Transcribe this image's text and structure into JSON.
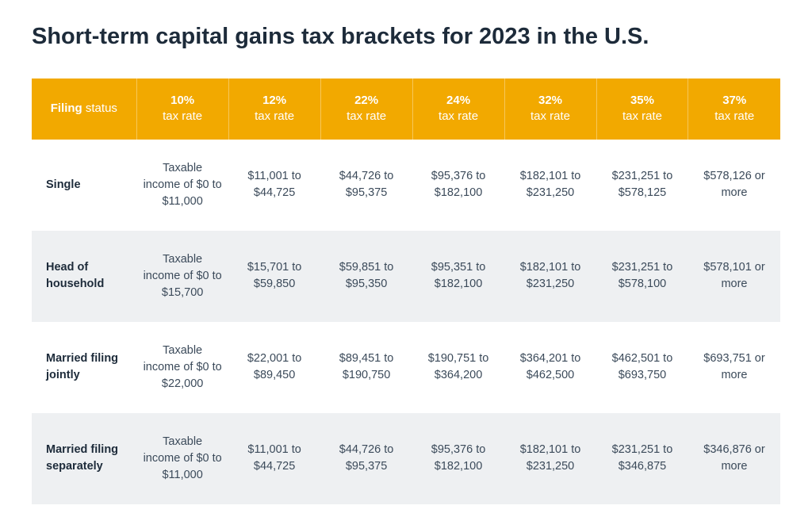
{
  "title": "Short-term capital gains tax brackets for 2023 in the U.S.",
  "table": {
    "header_bg": "#f2a900",
    "header_text_color": "#ffffff",
    "row_alt_bg": "#eef0f2",
    "text_color": "#3b4a5a",
    "columns": [
      {
        "bold": "Filing",
        "sub": "status"
      },
      {
        "bold": "10%",
        "sub": "tax rate"
      },
      {
        "bold": "12%",
        "sub": "tax rate"
      },
      {
        "bold": "22%",
        "sub": "tax rate"
      },
      {
        "bold": "24%",
        "sub": "tax rate"
      },
      {
        "bold": "32%",
        "sub": "tax rate"
      },
      {
        "bold": "35%",
        "sub": "tax rate"
      },
      {
        "bold": "37%",
        "sub": "tax rate"
      }
    ],
    "rows": [
      {
        "status": "Single",
        "cells": [
          "Taxable income of $0 to $11,000",
          "$11,001 to $44,725",
          "$44,726 to $95,375",
          "$95,376 to $182,100",
          "$182,101 to $231,250",
          "$231,251 to $578,125",
          "$578,126 or more"
        ]
      },
      {
        "status": "Head of household",
        "cells": [
          "Taxable income of $0 to $15,700",
          "$15,701 to $59,850",
          "$59,851 to $95,350",
          "$95,351 to $182,100",
          "$182,101 to $231,250",
          "$231,251 to $578,100",
          "$578,101 or more"
        ]
      },
      {
        "status": "Married filing jointly",
        "cells": [
          "Taxable income of $0 to $22,000",
          "$22,001 to $89,450",
          "$89,451 to $190,750",
          "$190,751 to $364,200",
          "$364,201 to $462,500",
          "$462,501 to $693,750",
          "$693,751 or more"
        ]
      },
      {
        "status": "Married filing separately",
        "cells": [
          "Taxable income of $0 to $11,000",
          "$11,001 to $44,725",
          "$44,726 to $95,375",
          "$95,376 to $182,100",
          "$182,101 to $231,250",
          "$231,251 to $346,875",
          "$346,876 or more"
        ]
      }
    ]
  }
}
